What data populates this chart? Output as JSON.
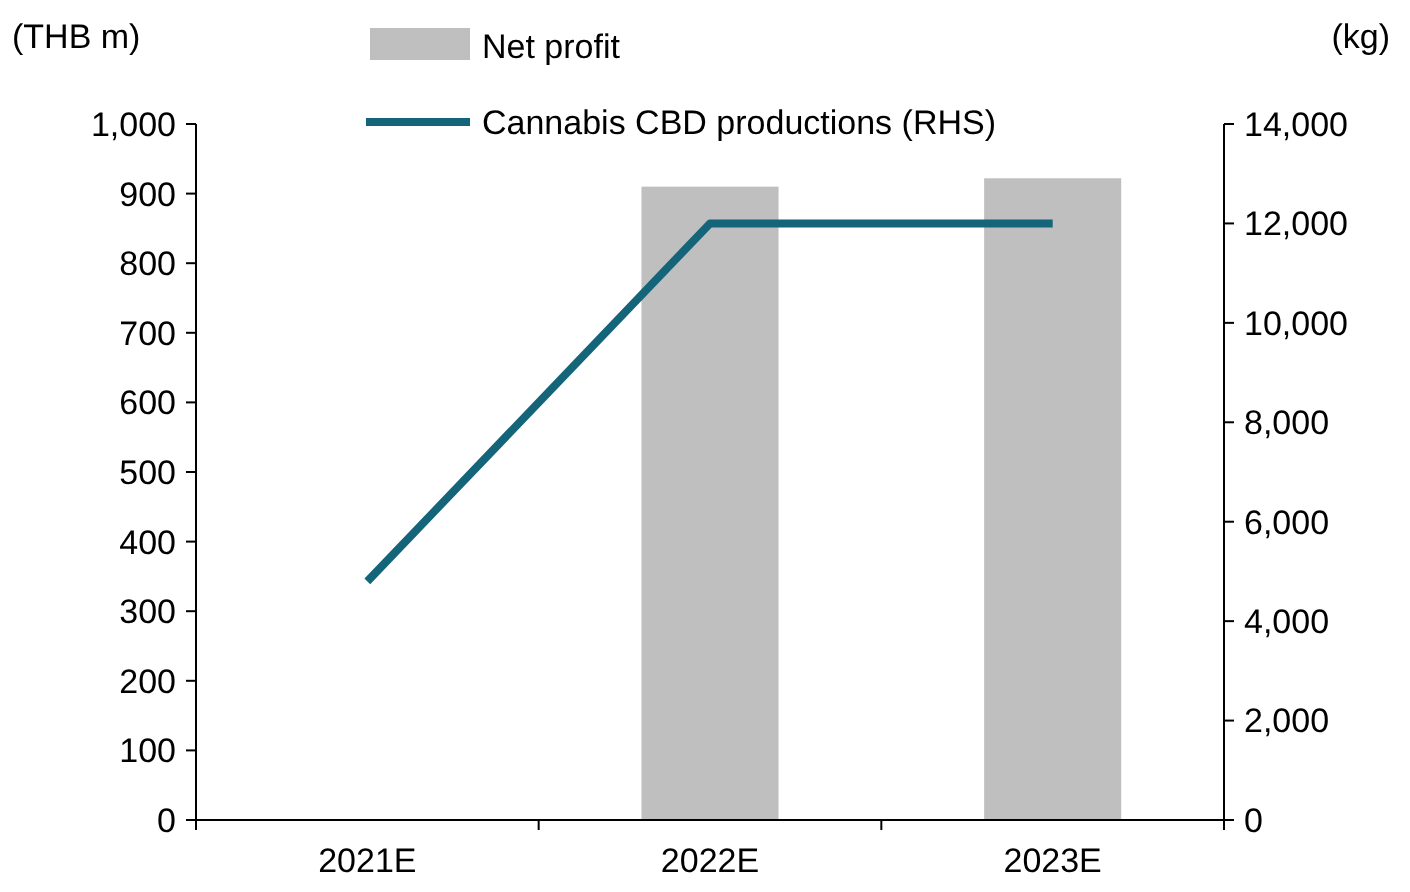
{
  "chart_data": {
    "type": "bar",
    "categories": [
      "2021E",
      "2022E",
      "2023E"
    ],
    "series": [
      {
        "name": "Net profit",
        "color": "#bfbfbf",
        "values": [
          null,
          910,
          922
        ]
      },
      {
        "name": "Cannabis CBD productions (RHS)",
        "type": "line",
        "axis": "y2",
        "color": "#14647a",
        "values": [
          4800,
          12000,
          12000
        ]
      }
    ],
    "ylabel": "(THB m)",
    "y2label": "(kg)",
    "ylim": [
      0,
      1000
    ],
    "yticks": [
      0,
      100,
      200,
      300,
      400,
      500,
      600,
      700,
      800,
      900,
      {
        "value": 1000,
        "label": "1,000"
      }
    ],
    "y2lim": [
      0,
      14000
    ],
    "y2ticks": [
      0,
      {
        "value": 2000,
        "label": "2,000"
      },
      {
        "value": 4000,
        "label": "4,000"
      },
      {
        "value": 6000,
        "label": "6,000"
      },
      {
        "value": 8000,
        "label": "8,000"
      },
      {
        "value": 10000,
        "label": "10,000"
      },
      {
        "value": 12000,
        "label": "12,000"
      },
      {
        "value": 14000,
        "label": "14,000"
      }
    ],
    "legend": "top",
    "grid": false,
    "marker": "none",
    "line_style": "solid"
  }
}
